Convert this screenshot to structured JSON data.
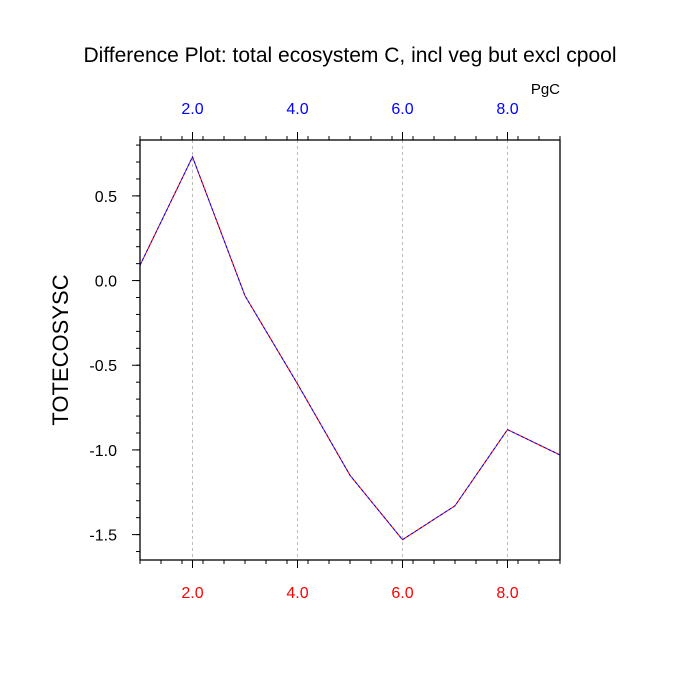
{
  "colors": {
    "top_ticks": "#0000ff",
    "bottom_ticks": "#ff0000",
    "line_a": "#0000ff",
    "line_b": "#ff0000",
    "grid": "#bbbbbb"
  },
  "chart_data": {
    "type": "line",
    "title": "Difference Plot: total ecosystem C, incl veg but excl cpool",
    "units": "PgC",
    "ylabel": "TOTECOSYSC",
    "xlabel": "",
    "xlim": [
      1,
      9
    ],
    "ylim": [
      -1.65,
      0.83
    ],
    "x_ticks": [
      2,
      4,
      6,
      8
    ],
    "x_tick_labels": [
      "2.0",
      "4.0",
      "6.0",
      "8.0"
    ],
    "y_ticks": [
      -1.5,
      -1.0,
      -0.5,
      0.0,
      0.5
    ],
    "y_tick_labels": [
      "-1.5",
      "-1.0",
      "-0.5",
      "0.0",
      "0.5"
    ],
    "grid": "vertical dashed at x ticks",
    "series": [
      {
        "x": [
          1,
          2,
          3,
          4,
          5,
          6,
          7,
          8,
          9
        ],
        "values": [
          0.09,
          0.73,
          -0.09,
          -0.61,
          -1.15,
          -1.53,
          -1.33,
          -0.88,
          -1.03
        ]
      }
    ]
  }
}
